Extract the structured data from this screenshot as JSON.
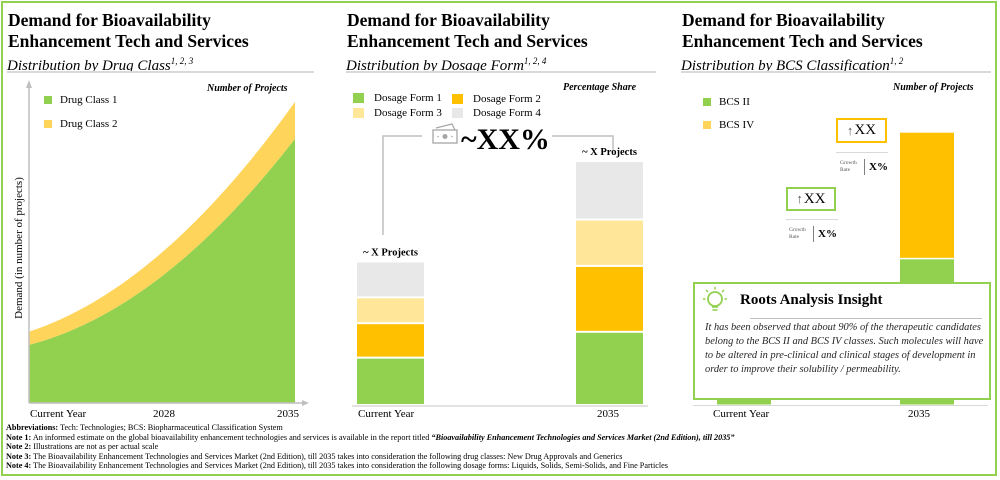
{
  "colors": {
    "green": "#92d050",
    "yellow": "#ffd45a",
    "gold": "#ffc000",
    "light_yellow": "#ffe699",
    "light_gray": "#e8e8e8",
    "frame": "#92d050"
  },
  "panels": [
    {
      "title_line1": "Demand for Bioavailability",
      "title_line2": "Enhancement Tech and Services",
      "subtitle": "Distribution by Drug Class",
      "subtitle_sup": "1, 2, 3"
    },
    {
      "title_line1": "Demand for Bioavailability",
      "title_line2": "Enhancement Tech and Services",
      "subtitle": "Distribution by Dosage Form",
      "subtitle_sup": "1, 2, 4"
    },
    {
      "title_line1": "Demand for Bioavailability",
      "title_line2": "Enhancement Tech and Services",
      "subtitle": "Distribution by BCS Classification",
      "subtitle_sup": "1, 2"
    }
  ],
  "chart_data": [
    {
      "type": "area",
      "title": "Distribution by Drug Class",
      "unit_label": "Number of Projects",
      "xlabel": "",
      "ylabel": "Demand (in number of projects)",
      "x": [
        "Current Year",
        "2028",
        "2035"
      ],
      "tick_labels": [
        "Current Year",
        "2028",
        "2035"
      ],
      "series": [
        {
          "name": "Drug Class 1",
          "color": "#92d050",
          "values": [
            22,
            48,
            100
          ]
        },
        {
          "name": "Drug Class 2",
          "color": "#ffd45a",
          "values": [
            5,
            9,
            14
          ]
        }
      ],
      "ylim": [
        0,
        120
      ],
      "stacked": true,
      "grid": false,
      "legend": "top-left",
      "note": "Illustrative; values not to scale"
    },
    {
      "type": "bar",
      "title": "Distribution by Dosage Form",
      "unit_label": "Percentage Share",
      "categories": [
        "Current Year",
        "2035"
      ],
      "series": [
        {
          "name": "Dosage Form 1",
          "color": "#92d050",
          "values": [
            33,
            30
          ]
        },
        {
          "name": "Dosage Form 2",
          "color": "#ffc000",
          "values": [
            24,
            27
          ]
        },
        {
          "name": "Dosage Form 3",
          "color": "#ffe699",
          "values": [
            18,
            19
          ]
        },
        {
          "name": "Dosage Form 4",
          "color": "#e8e8e8",
          "values": [
            25,
            24
          ]
        }
      ],
      "bar_totals": [
        100,
        170
      ],
      "bar_labels": [
        "~ X Projects",
        "~ X Projects"
      ],
      "growth_label": "~XX%",
      "stacked": true,
      "legend": "top-left",
      "grid": false
    },
    {
      "type": "bar",
      "title": "Distribution by BCS Classification",
      "unit_label": "Number of Projects",
      "categories": [
        "Current Year",
        "2035"
      ],
      "series": [
        {
          "name": "BCS II",
          "color": "#92d050",
          "values": [
            55,
            88
          ]
        },
        {
          "name": "BCS IV",
          "color": "#ffc000",
          "values": [
            18,
            76
          ]
        }
      ],
      "ylim": [
        0,
        180
      ],
      "stacked": true,
      "legend": "top-left",
      "grid": false,
      "callouts": [
        {
          "value": "XX",
          "growth_label": "Growth Rate",
          "growth_value": "X%",
          "border": "#92d050"
        },
        {
          "value": "XX",
          "growth_label": "Growth Rate",
          "growth_value": "X%",
          "border": "#ffc000"
        }
      ]
    }
  ],
  "insight": {
    "title": "Roots Analysis Insight",
    "icon": "lightbulb-icon",
    "text": "It has been observed that about 90% of the therapeutic candidates belong to the BCS II and BCS IV classes. Such molecules will have to be altered in pre-clinical and clinical stages of development in order to improve their solubility / permeability."
  },
  "notes": [
    {
      "label": "Abbreviations:",
      "text": " Tech: Technologies; BCS: Biopharmaceutical Classification System"
    },
    {
      "label": "Note 1:",
      "text": " An informed estimate on the global bioavailability enhancement technologies and services is available in the report titled ",
      "italic": "“Bioavailability Enhancement Technologies and Services Market (2nd Edition), till 2035”"
    },
    {
      "label": "Note 2:",
      "text": " Illustrations are not as per actual scale"
    },
    {
      "label": "Note 3:",
      "text": " The Bioavailability Enhancement Technologies and Services Market (2nd Edition), till 2035 takes into consideration the following drug classes: New Drug Approvals and Generics"
    },
    {
      "label": "Note 4:",
      "text": " The Bioavailability Enhancement Technologies and Services Market (2nd Edition), till 2035 takes into consideration the following dosage forms: Liquids, Solids, Semi-Solids, and Fine Particles"
    }
  ]
}
